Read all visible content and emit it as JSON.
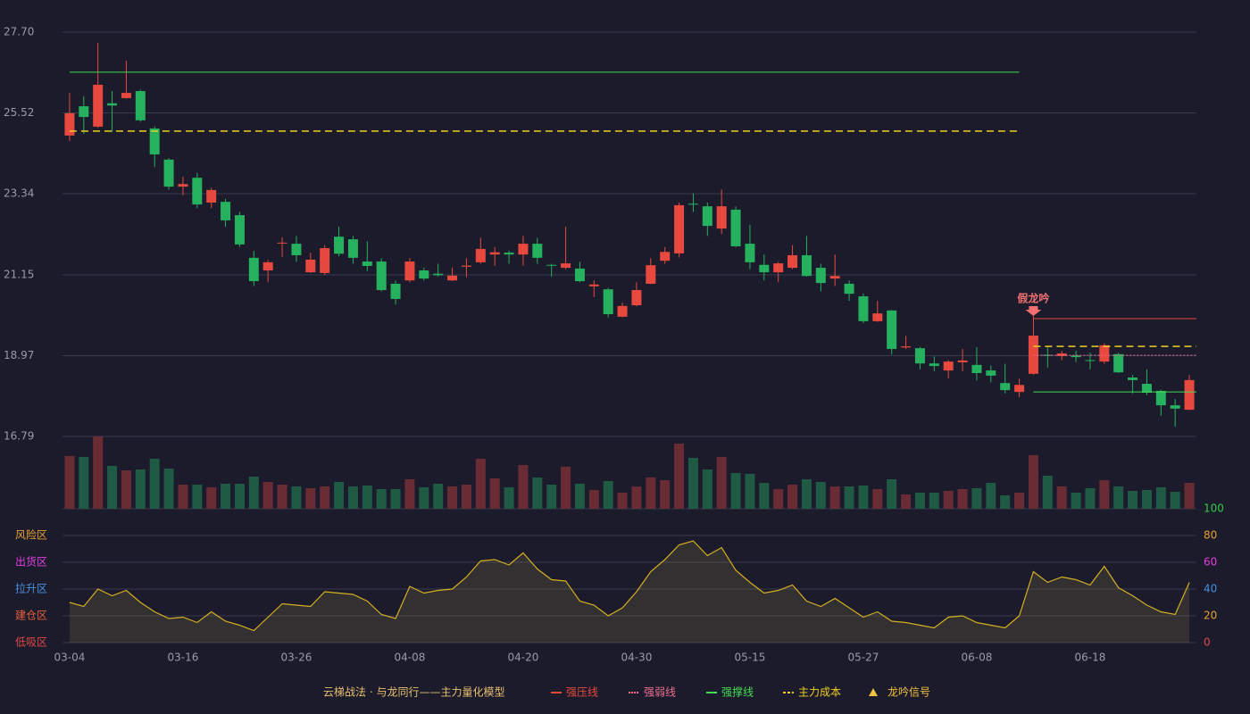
{
  "chart_data": {
    "type": "candlestick",
    "categories": [
      "03-04",
      null,
      null,
      null,
      null,
      null,
      null,
      null,
      "03-16",
      null,
      null,
      null,
      null,
      null,
      null,
      null,
      "03-26",
      null,
      null,
      null,
      null,
      null,
      null,
      null,
      "04-08",
      null,
      null,
      null,
      null,
      null,
      null,
      null,
      "04-20",
      null,
      null,
      null,
      null,
      null,
      null,
      null,
      "04-30",
      null,
      null,
      null,
      null,
      null,
      null,
      null,
      "05-15",
      null,
      null,
      null,
      null,
      null,
      null,
      null,
      "05-27",
      null,
      null,
      null,
      null,
      null,
      null,
      null,
      "06-08",
      null,
      null,
      null,
      null,
      null,
      null,
      null,
      "06-18",
      null,
      null,
      null,
      null,
      null,
      null,
      null
    ],
    "open": [
      24.91,
      25.7,
      25.15,
      25.78,
      25.92,
      26.11,
      25.1,
      24.26,
      23.53,
      23.77,
      23.1,
      23.12,
      22.76,
      21.61,
      21.27,
      22.0,
      21.99,
      21.22,
      21.2,
      22.18,
      22.11,
      21.51,
      21.51,
      20.91,
      21.0,
      21.27,
      21.18,
      21.0,
      21.37,
      21.49,
      21.7,
      21.75,
      21.7,
      21.99,
      21.42,
      21.34,
      21.32,
      20.84,
      20.76,
      20.02,
      20.33,
      20.91,
      21.53,
      21.73,
      23.07,
      23.0,
      22.4,
      22.91,
      21.99,
      21.42,
      21.22,
      21.34,
      21.68,
      21.34,
      21.05,
      20.91,
      20.57,
      19.9,
      20.19,
      19.19,
      19.17,
      18.76,
      18.57,
      18.79,
      18.72,
      18.57,
      18.23,
      17.99,
      18.48,
      18.99,
      18.96,
      18.97,
      18.85,
      18.81,
      19.01,
      18.38,
      18.21,
      18.02,
      17.63,
      17.51
    ],
    "high": [
      26.06,
      25.97,
      27.41,
      26.11,
      26.93,
      26.15,
      25.15,
      24.3,
      23.8,
      23.9,
      23.5,
      23.2,
      22.85,
      21.8,
      21.55,
      22.16,
      22.2,
      21.75,
      21.95,
      22.45,
      22.2,
      22.05,
      21.6,
      21.0,
      21.6,
      21.35,
      21.45,
      21.35,
      21.6,
      22.15,
      21.9,
      21.8,
      22.2,
      22.15,
      21.45,
      22.45,
      21.5,
      21.0,
      20.8,
      20.4,
      20.95,
      21.6,
      21.9,
      23.1,
      23.35,
      23.1,
      23.45,
      23.0,
      22.5,
      21.7,
      21.5,
      21.95,
      22.2,
      21.45,
      21.7,
      21.0,
      20.65,
      20.45,
      20.2,
      19.5,
      19.2,
      18.95,
      18.85,
      19.15,
      19.2,
      18.7,
      18.75,
      18.35,
      20.05,
      19.2,
      19.1,
      19.1,
      19.05,
      19.3,
      19.05,
      18.45,
      18.6,
      18.05,
      17.8,
      18.45
    ],
    "low": [
      24.76,
      24.95,
      25.12,
      25.0,
      25.9,
      25.28,
      24.06,
      23.45,
      23.3,
      22.95,
      22.95,
      22.45,
      21.9,
      20.85,
      20.95,
      21.63,
      21.5,
      21.2,
      21.15,
      21.65,
      21.45,
      21.25,
      20.7,
      20.35,
      20.95,
      21.0,
      21.1,
      20.98,
      21.08,
      21.45,
      21.4,
      21.45,
      21.4,
      21.45,
      21.1,
      21.3,
      20.95,
      20.55,
      20.0,
      20.0,
      20.3,
      20.9,
      21.45,
      21.62,
      22.85,
      22.2,
      22.25,
      21.9,
      21.3,
      21.0,
      20.95,
      21.3,
      21.1,
      20.7,
      20.85,
      20.45,
      19.85,
      19.88,
      19.0,
      19.15,
      18.6,
      18.55,
      18.35,
      18.55,
      18.3,
      18.25,
      17.95,
      17.85,
      18.45,
      18.65,
      18.85,
      18.8,
      18.6,
      18.75,
      18.5,
      17.95,
      17.9,
      17.35,
      17.05,
      17.5
    ],
    "close": [
      25.51,
      25.41,
      26.28,
      25.72,
      26.06,
      25.32,
      24.4,
      23.53,
      23.6,
      23.05,
      23.44,
      22.62,
      21.97,
      20.98,
      21.49,
      22.02,
      21.68,
      21.56,
      21.87,
      21.72,
      21.61,
      21.39,
      20.74,
      20.5,
      21.51,
      21.05,
      21.14,
      21.13,
      21.4,
      21.85,
      21.76,
      21.7,
      21.99,
      21.61,
      21.4,
      21.46,
      20.98,
      20.89,
      20.09,
      20.31,
      20.74,
      21.41,
      21.77,
      23.03,
      23.05,
      22.47,
      23.0,
      21.92,
      21.49,
      21.22,
      21.46,
      21.68,
      21.12,
      20.93,
      21.12,
      20.64,
      19.9,
      20.11,
      19.15,
      19.22,
      18.76,
      18.69,
      18.81,
      18.84,
      18.5,
      18.43,
      18.04,
      18.18,
      19.51,
      18.97,
      19.03,
      18.93,
      18.83,
      19.25,
      18.52,
      18.31,
      17.97,
      17.63,
      17.54,
      18.31
    ],
    "volume": [
      59,
      58,
      81,
      48,
      43,
      44,
      56,
      45,
      27,
      27,
      24,
      28,
      28,
      36,
      30,
      27,
      25,
      23,
      25,
      30,
      25,
      26,
      22,
      22,
      33,
      24,
      28,
      25,
      27,
      56,
      34,
      24,
      49,
      35,
      27,
      47,
      28,
      21,
      31,
      18,
      25,
      35,
      32,
      73,
      57,
      44,
      58,
      40,
      39,
      29,
      22,
      27,
      33,
      30,
      25,
      25,
      26,
      22,
      33,
      16,
      18,
      18,
      20,
      22,
      23,
      29,
      15,
      18,
      60,
      37,
      25,
      18,
      23,
      32,
      25,
      20,
      21,
      24,
      19,
      29
    ],
    "up_color": "#e8493e",
    "down_color": "#26b15f",
    "ylim": [
      16.79,
      27.7
    ],
    "yticks": [
      {
        "value": 27.7,
        "label": "27.70"
      },
      25.52,
      23.34,
      21.15,
      18.97,
      16.79
    ],
    "grid": true,
    "indicator": {
      "values": [
        30,
        27,
        40,
        35,
        39,
        30,
        23,
        18,
        19,
        15,
        23,
        16,
        13,
        9,
        19,
        29,
        28,
        27,
        38,
        37,
        36,
        31,
        21,
        18,
        42,
        37,
        39,
        40,
        49,
        61,
        62,
        58,
        67,
        55,
        47,
        46,
        31,
        28,
        20,
        26,
        38,
        53,
        62,
        73,
        76,
        65,
        71,
        54,
        45,
        37,
        39,
        43,
        31,
        27,
        33,
        26,
        19,
        23,
        16,
        15,
        13,
        11,
        19,
        20,
        15,
        13,
        11,
        20,
        53,
        45,
        49,
        47,
        43,
        57,
        41,
        35,
        28,
        23,
        21,
        45
      ],
      "color": "#d4b020",
      "ylim": [
        0,
        100
      ],
      "yticks": [
        {
          "value": 0,
          "color": "#e04848"
        },
        {
          "value": 20,
          "color": "#e8a030"
        },
        {
          "value": 40,
          "color": "#4a90e2"
        },
        {
          "value": 60,
          "color": "#e040e0"
        },
        {
          "value": 80,
          "color": "#e8a030"
        },
        {
          "value": 100,
          "color": "#33cc44"
        }
      ],
      "zones": [
        {
          "label": "低吸区",
          "value": 0,
          "color": "#e04848"
        },
        {
          "label": "建仓区",
          "value": 20,
          "color": "#e8603a"
        },
        {
          "label": "拉升区",
          "value": 40,
          "color": "#4a90e2"
        },
        {
          "label": "出货区",
          "value": 60,
          "color": "#e040e0"
        },
        {
          "label": "风险区",
          "value": 80,
          "color": "#e8a030"
        }
      ]
    },
    "legend": {
      "title": "云梯战法 · 与龙同行——主力量化模型",
      "items": [
        {
          "name": "强压线",
          "color": "#e8493e",
          "style": "solid",
          "levels": [
            {
              "value": 19.97,
              "x": [
                68,
                79
              ]
            }
          ]
        },
        {
          "name": "强弱线",
          "color": "#f07090",
          "style": "dotted",
          "levels": [
            {
              "value": 18.98,
              "x": [
                68,
                79
              ]
            }
          ]
        },
        {
          "name": "强撑线",
          "color": "#44dd55",
          "style": "solid",
          "levels": [
            {
              "value": 26.62,
              "x": [
                0,
                67
              ]
            },
            {
              "value": 17.99,
              "x": [
                68,
                79
              ]
            }
          ]
        },
        {
          "name": "主力成本",
          "color": "#f0d020",
          "style": "dashed",
          "levels": [
            {
              "value": 25.03,
              "x": [
                0,
                67
              ]
            },
            {
              "value": 19.22,
              "x": [
                68,
                79
              ]
            }
          ]
        },
        {
          "name": "龙吟信号",
          "color": "#f0c040",
          "style": "triangle",
          "levels": []
        }
      ]
    },
    "annotation": {
      "text": "假龙吟",
      "x": 68,
      "color": "#f07070"
    }
  }
}
